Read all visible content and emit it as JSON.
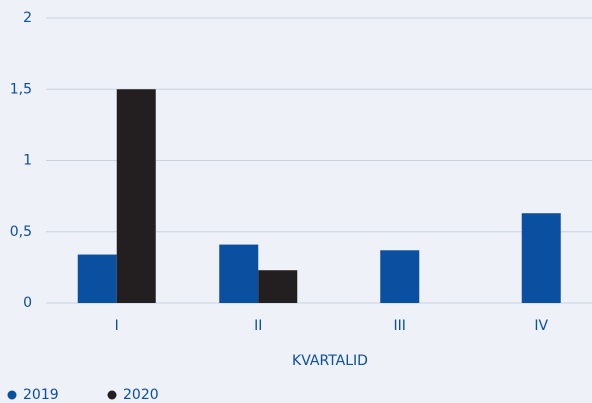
{
  "chart_data": {
    "type": "bar",
    "categories": [
      "I",
      "II",
      "III",
      "IV"
    ],
    "x_label": "KVARTALID",
    "series": [
      {
        "name": "2019",
        "color": "#0a4fa0",
        "values": [
          0.34,
          0.41,
          0.37,
          0.63
        ]
      },
      {
        "name": "2020",
        "color": "#231f20",
        "values": [
          1.5,
          0.23,
          null,
          null
        ]
      }
    ],
    "ylim": [
      0,
      2
    ],
    "yticks": [
      0,
      {
        "value": 0.5,
        "label": "0,5"
      },
      1,
      {
        "value": 1.5,
        "label": "1,5"
      },
      2
    ],
    "grid": true,
    "legend": "bottom-left"
  }
}
